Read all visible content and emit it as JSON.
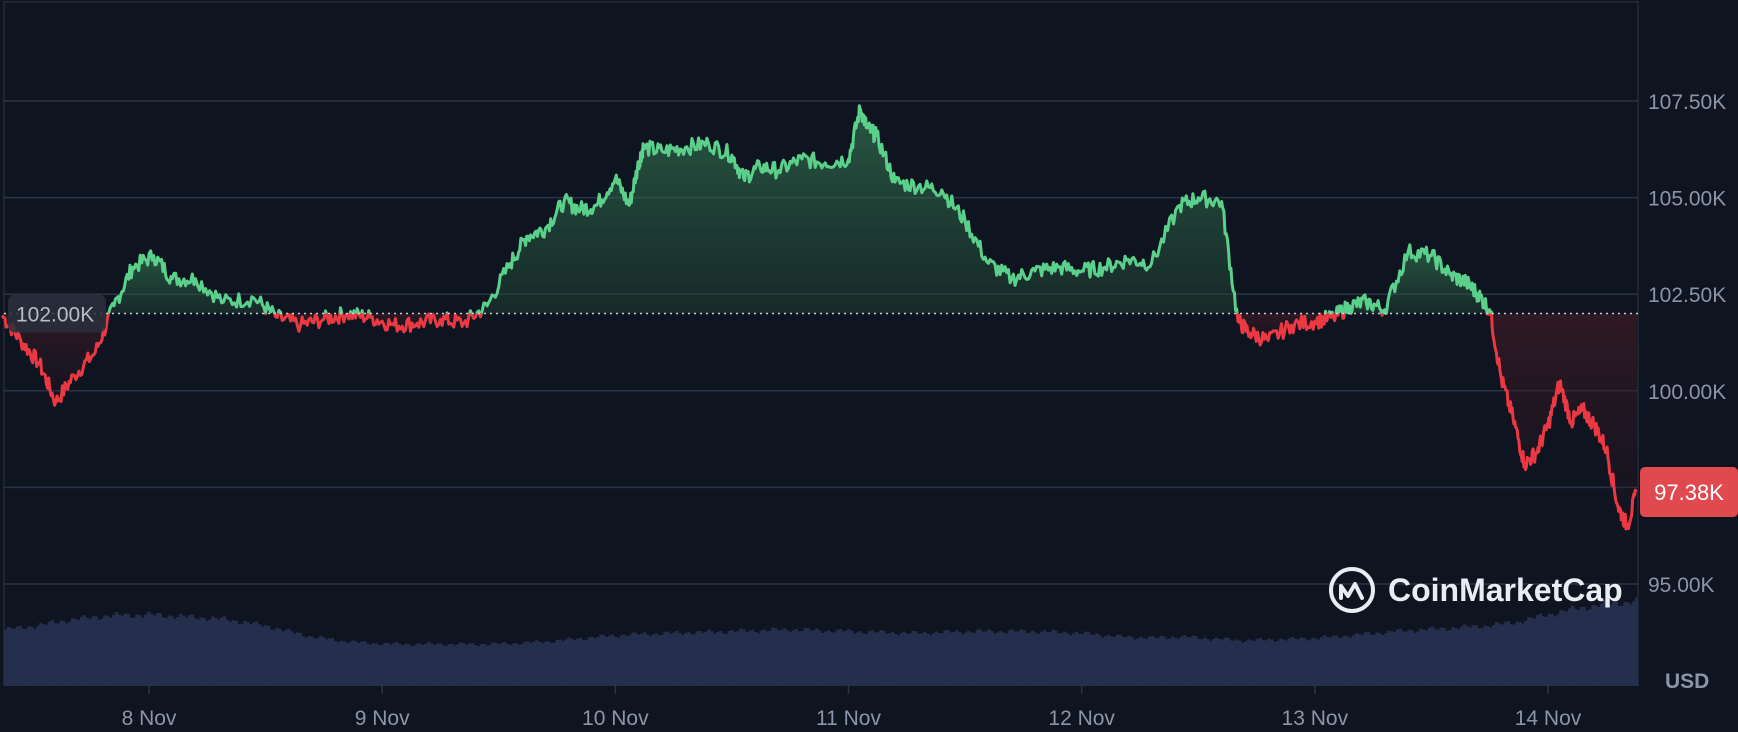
{
  "chart_data": {
    "type": "line",
    "currency": "USD",
    "y_ticks": [
      "107.50K",
      "105.00K",
      "102.50K",
      "100.00K",
      "95.00K"
    ],
    "y_tick_values": [
      107500,
      105000,
      102500,
      100000,
      95000
    ],
    "ylim": [
      92500,
      110000
    ],
    "x_ticks": [
      "8 Nov",
      "9 Nov",
      "10 Nov",
      "11 Nov",
      "12 Nov",
      "13 Nov",
      "14 Nov"
    ],
    "x_tick_values": [
      8,
      9,
      10,
      11,
      12,
      13,
      14
    ],
    "xlim": [
      7.37,
      14.39
    ],
    "reference": {
      "value": 102000,
      "label": "102.00K"
    },
    "current": {
      "value": 97380,
      "label": "97.38K"
    },
    "x": [
      7.37,
      7.45,
      7.53,
      7.6,
      7.68,
      7.77,
      7.85,
      7.93,
      8.02,
      8.1,
      8.2,
      8.32,
      8.45,
      8.55,
      8.65,
      8.75,
      8.85,
      8.95,
      9.05,
      9.15,
      9.25,
      9.35,
      9.45,
      9.55,
      9.62,
      9.7,
      9.78,
      9.85,
      9.92,
      10.0,
      10.06,
      10.1,
      10.12,
      10.2,
      10.3,
      10.4,
      10.5,
      10.55,
      10.62,
      10.7,
      10.8,
      10.9,
      11.0,
      11.05,
      11.08,
      11.12,
      11.2,
      11.3,
      11.4,
      11.5,
      11.6,
      11.7,
      11.8,
      11.9,
      12.0,
      12.1,
      12.2,
      12.3,
      12.42,
      12.5,
      12.6,
      12.67,
      12.72,
      12.8,
      12.9,
      13.0,
      13.08,
      13.15,
      13.22,
      13.3,
      13.4,
      13.5,
      13.58,
      13.65,
      13.7,
      13.75,
      13.8,
      13.85,
      13.9,
      13.95,
      14.0,
      14.05,
      14.1,
      14.15,
      14.2,
      14.25,
      14.3,
      14.34,
      14.38
    ],
    "y": [
      101950,
      101300,
      100700,
      99700,
      100400,
      101000,
      102200,
      103200,
      103500,
      102900,
      102900,
      102300,
      102400,
      101900,
      101700,
      101850,
      102000,
      101900,
      101700,
      101750,
      101850,
      101750,
      102200,
      103300,
      104000,
      104200,
      104900,
      104700,
      104800,
      105500,
      104800,
      105900,
      106300,
      106200,
      106300,
      106400,
      106100,
      105500,
      105800,
      105700,
      106000,
      105900,
      106000,
      107300,
      106800,
      106600,
      105400,
      105300,
      105200,
      104400,
      103300,
      102900,
      103100,
      103200,
      103100,
      103200,
      103400,
      103300,
      104800,
      105000,
      104900,
      101800,
      101500,
      101300,
      101700,
      101800,
      101900,
      102200,
      102300,
      102100,
      103600,
      103500,
      103000,
      102800,
      102500,
      102100,
      100300,
      99300,
      98100,
      98400,
      99100,
      100200,
      99200,
      99500,
      99100,
      98500,
      97000,
      96500,
      97380
    ],
    "volume_profile": [
      0.62,
      0.66,
      0.72,
      0.76,
      0.78,
      0.78,
      0.76,
      0.74,
      0.7,
      0.63,
      0.55,
      0.5,
      0.47,
      0.46,
      0.46,
      0.46,
      0.46,
      0.47,
      0.49,
      0.52,
      0.55,
      0.57,
      0.58,
      0.59,
      0.6,
      0.61,
      0.62,
      0.61,
      0.6,
      0.59,
      0.58,
      0.59,
      0.6,
      0.6,
      0.6,
      0.59,
      0.57,
      0.54,
      0.53,
      0.54,
      0.52,
      0.5,
      0.51,
      0.52,
      0.54,
      0.57,
      0.6,
      0.62,
      0.64,
      0.66,
      0.7,
      0.78,
      0.85,
      0.9,
      0.93
    ],
    "colors": {
      "up": "#5bd08a",
      "down": "#ea3943",
      "grid": "#2b3347",
      "volume": "#252e4d",
      "background": "#0f1421"
    },
    "grid": true
  },
  "brand": {
    "name": "CoinMarketCap",
    "logo_icon": "coinmarketcap-logo-icon"
  }
}
